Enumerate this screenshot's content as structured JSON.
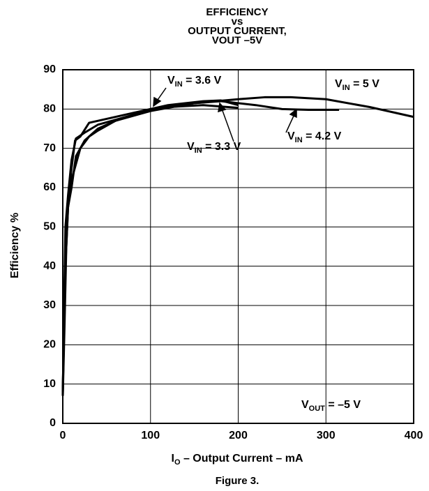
{
  "chart_data": {
    "type": "line",
    "title": [
      "EFFICIENCY",
      "vs",
      "OUTPUT CURRENT,",
      "VOUT –5V"
    ],
    "xlabel": "IO – Output Current – mA",
    "ylabel": "Efficiency %",
    "caption": "Figure 3.",
    "annotation": "VOUT = –5 V",
    "xlim": [
      0,
      400
    ],
    "xticks": [
      0,
      100,
      200,
      300,
      400
    ],
    "ylim": [
      0,
      90
    ],
    "yticks": [
      0,
      10,
      20,
      30,
      40,
      50,
      60,
      70,
      80,
      90
    ],
    "grid": true,
    "series": [
      {
        "name": "VIN = 3.6 V",
        "color": "#000000",
        "x": [
          0,
          3,
          6,
          10,
          14,
          20,
          30,
          50,
          80,
          120,
          160,
          180,
          200
        ],
        "values": [
          8,
          45,
          57,
          65,
          72,
          73,
          76.5,
          77.5,
          79,
          81,
          82,
          82.2,
          81
        ]
      },
      {
        "name": "VIN = 5 V",
        "color": "#000000",
        "x": [
          0,
          2,
          4,
          6,
          10,
          15,
          20,
          30,
          40,
          60,
          100,
          150,
          200,
          230,
          260,
          300,
          350,
          400
        ],
        "values": [
          7,
          25,
          45,
          55,
          62,
          66,
          70,
          73,
          74.5,
          77,
          79.5,
          81.5,
          82.5,
          83,
          83,
          82.5,
          80.5,
          78
        ]
      },
      {
        "name": "VIN = 3.3 V",
        "color": "#000000",
        "x": [
          0,
          3,
          6,
          10,
          15,
          25,
          40,
          80,
          120,
          160,
          200
        ],
        "values": [
          7,
          50,
          58,
          67,
          72.5,
          74,
          76,
          78.5,
          80.5,
          81,
          80.3
        ]
      },
      {
        "name": "VIN = 4.2 V",
        "color": "#000000",
        "x": [
          0,
          3,
          6,
          10,
          15,
          25,
          40,
          60,
          100,
          150,
          180,
          220,
          250,
          280,
          315
        ],
        "values": [
          8,
          40,
          55,
          60,
          68,
          72,
          75,
          77,
          80,
          81.5,
          82,
          81,
          80,
          79.8,
          79.8
        ]
      }
    ]
  }
}
